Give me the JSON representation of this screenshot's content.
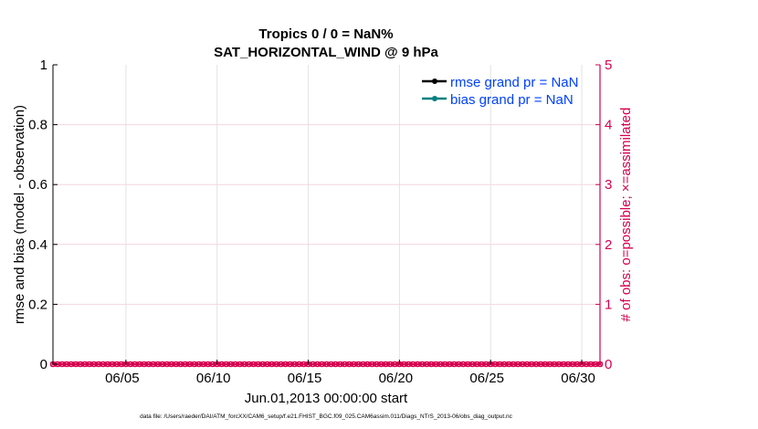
{
  "chart_data": {
    "type": "line",
    "title": [
      "Tropics 0 / 0 = NaN%",
      "SAT_HORIZONTAL_WIND @ 9 hPa"
    ],
    "xlabel": "Jun.01,2013 00:00:00 start",
    "ylabel_left": "rmse and bias (model - observation)",
    "ylabel_right": "# of obs: o=possible; ×=assimilated",
    "xlim": [
      "2013-06-01",
      "2013-07-01"
    ],
    "x_ticks": [
      {
        "date": "2013-06-05",
        "label": "06/05"
      },
      {
        "date": "2013-06-10",
        "label": "06/10"
      },
      {
        "date": "2013-06-15",
        "label": "06/15"
      },
      {
        "date": "2013-06-20",
        "label": "06/20"
      },
      {
        "date": "2013-06-25",
        "label": "06/25"
      },
      {
        "date": "2013-06-30",
        "label": "06/30"
      }
    ],
    "ylim_left": [
      0,
      1
    ],
    "y_ticks_left": [
      "0",
      "0.2",
      "0.4",
      "0.6",
      "0.8",
      "1"
    ],
    "ylim_right": [
      0,
      5
    ],
    "y_ticks_right": [
      "0",
      "1",
      "2",
      "3",
      "4",
      "5"
    ],
    "grid": true,
    "legend_position": "top-right",
    "series": [
      {
        "name": "rmse grand pr = NaN",
        "color": "#000000",
        "values": []
      },
      {
        "name": "bias grand pr = NaN",
        "color": "#008080",
        "values": []
      },
      {
        "name": "obs possible",
        "color": "#D6004F",
        "axis": "right",
        "marker": "o",
        "values": [
          0,
          0,
          0,
          0,
          0,
          0,
          0,
          0,
          0,
          0,
          0,
          0,
          0,
          0,
          0,
          0,
          0,
          0,
          0,
          0,
          0,
          0,
          0,
          0,
          0,
          0,
          0,
          0,
          0,
          0,
          0,
          0,
          0,
          0,
          0,
          0,
          0,
          0,
          0,
          0,
          0,
          0,
          0,
          0,
          0,
          0,
          0,
          0,
          0,
          0,
          0,
          0,
          0,
          0,
          0,
          0,
          0,
          0,
          0,
          0,
          0,
          0,
          0,
          0,
          0,
          0,
          0,
          0,
          0,
          0,
          0,
          0,
          0,
          0,
          0,
          0,
          0,
          0,
          0,
          0,
          0,
          0,
          0,
          0,
          0,
          0,
          0,
          0,
          0,
          0,
          0,
          0,
          0,
          0,
          0,
          0,
          0,
          0,
          0,
          0,
          0,
          0,
          0,
          0,
          0,
          0,
          0,
          0,
          0,
          0,
          0,
          0,
          0,
          0,
          0,
          0,
          0,
          0,
          0,
          0,
          0
        ]
      },
      {
        "name": "obs assimilated",
        "color": "#D6004F",
        "axis": "right",
        "marker": "x",
        "values": [
          0,
          0,
          0,
          0,
          0,
          0,
          0,
          0,
          0,
          0,
          0,
          0,
          0,
          0,
          0,
          0,
          0,
          0,
          0,
          0,
          0,
          0,
          0,
          0,
          0,
          0,
          0,
          0,
          0,
          0,
          0,
          0,
          0,
          0,
          0,
          0,
          0,
          0,
          0,
          0,
          0,
          0,
          0,
          0,
          0,
          0,
          0,
          0,
          0,
          0,
          0,
          0,
          0,
          0,
          0,
          0,
          0,
          0,
          0,
          0,
          0,
          0,
          0,
          0,
          0,
          0,
          0,
          0,
          0,
          0,
          0,
          0,
          0,
          0,
          0,
          0,
          0,
          0,
          0,
          0,
          0,
          0,
          0,
          0,
          0,
          0,
          0,
          0,
          0,
          0,
          0,
          0,
          0,
          0,
          0,
          0,
          0,
          0,
          0,
          0,
          0,
          0,
          0,
          0,
          0,
          0,
          0,
          0,
          0,
          0,
          0,
          0,
          0,
          0,
          0,
          0,
          0,
          0,
          0,
          0,
          0
        ]
      }
    ],
    "legend_text_color": "#0040FF",
    "right_axis_color": "#D6004F"
  },
  "footer": "data file: /Users/raeder/DAI/ATM_forcXX/CAM6_setup/f.e21.FHIST_BGC.f09_025.CAM6assim.011/Diags_NTrS_2013-06/obs_diag_output.nc"
}
